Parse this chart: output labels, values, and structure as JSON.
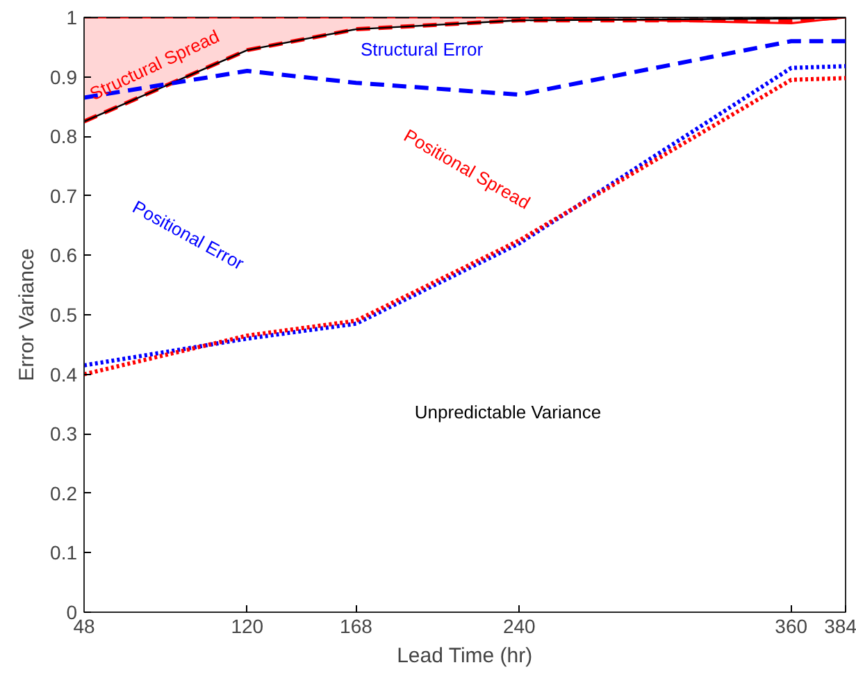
{
  "chart_data": {
    "type": "line",
    "xlabel": "Lead Time (hr)",
    "ylabel": "Error Variance",
    "x": [
      48,
      120,
      168,
      240,
      360,
      384
    ],
    "xlim": [
      48,
      384
    ],
    "xticks": [
      48,
      120,
      168,
      240,
      360,
      384
    ],
    "ylim": [
      0,
      1
    ],
    "yticks": [
      0,
      0.1,
      0.2,
      0.3,
      0.4,
      0.5,
      0.6,
      0.7,
      0.8,
      0.9,
      1
    ],
    "marker": "none",
    "series": [
      {
        "color": "#ff0000",
        "line_style": "dashed",
        "values": [
          0.825,
          0.945,
          0.98,
          0.995,
          0.995,
          1.0
        ],
        "lower": [
          0.825,
          0.945,
          0.98,
          0.995,
          0.995,
          1.0
        ],
        "upper": [
          1.0,
          1.0,
          1.0,
          1.0,
          0.99,
          1.0
        ]
      },
      {
        "color": "#ff0000",
        "line_style": "solid",
        "values": [
          1.0,
          1.0,
          1.0,
          1.0,
          0.99,
          1.0
        ]
      },
      {
        "color": "#000000",
        "line_style": "solid",
        "values": [
          0.825,
          0.945,
          0.98,
          0.995,
          0.998,
          1.0
        ]
      },
      {
        "color": "#000000",
        "line_style": "dashed",
        "values": [
          1.0,
          1.0,
          1.0,
          1.0,
          1.0,
          1.0
        ]
      },
      {
        "color": "#0000ff",
        "line_style": "dashed",
        "values": [
          0.865,
          0.91,
          0.89,
          0.87,
          0.96,
          0.96
        ]
      },
      {
        "color": "#0000ff",
        "line_style": "dotted",
        "values": [
          0.415,
          0.46,
          0.485,
          0.62,
          0.915,
          0.918
        ]
      },
      {
        "color": "#ff0000",
        "line_style": "dotted",
        "values": [
          0.4,
          0.465,
          0.49,
          0.625,
          0.895,
          0.898
        ]
      }
    ],
    "annotations": [
      "Structural Spread",
      "Structural Error",
      "Positional Spread",
      "Positional Error",
      "Unpredictable Variance"
    ]
  }
}
